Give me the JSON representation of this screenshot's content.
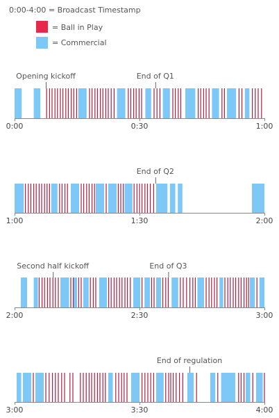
{
  "chart_data": {
    "type": "timeline",
    "legend": {
      "title": "0:00-4:00 = Broadcast Timestamp",
      "items": [
        {
          "label": "= Ball in Play",
          "color": "#e8284a"
        },
        {
          "label": "= Commercial",
          "color": "#7ec8f8"
        }
      ]
    },
    "colors": {
      "play": "#b01f3e",
      "commercial": "#7ec8f8",
      "axis": "#888888"
    },
    "panels": [
      {
        "start_min": 0,
        "ticks": [
          "0:00",
          "0:30",
          "1:00"
        ],
        "annotations": [
          {
            "label": "Opening kickoff",
            "at_min": 7.5
          },
          {
            "label": "End of Q1",
            "at_min": 33.8
          }
        ],
        "commercials": [
          [
            0.0,
            1.7
          ],
          [
            4.6,
            6.2
          ],
          [
            15.3,
            17.3
          ],
          [
            24.6,
            26.6
          ],
          [
            31.4,
            32.8
          ],
          [
            35.6,
            37.3
          ],
          [
            41.0,
            43.4
          ],
          [
            47.4,
            49.1
          ],
          [
            51.0,
            53.2
          ],
          [
            55.3,
            56.4
          ]
        ],
        "plays": [
          7.7,
          8.4,
          9.0,
          9.7,
          10.3,
          11.0,
          11.6,
          12.3,
          12.9,
          13.6,
          14.2,
          14.9,
          18.0,
          18.6,
          19.3,
          19.9,
          20.6,
          21.2,
          21.9,
          22.5,
          23.2,
          23.9,
          27.3,
          27.9,
          28.6,
          29.2,
          29.9,
          30.5,
          33.5,
          34.2,
          34.9,
          38.0,
          38.6,
          39.3,
          39.9,
          44.1,
          44.7,
          45.4,
          46.0,
          46.7,
          49.8,
          50.4,
          53.9,
          54.6,
          57.1,
          57.8,
          58.5,
          59.3
        ]
      },
      {
        "start_min": 60,
        "ticks": [
          "1:00",
          "1:30",
          "2:00"
        ],
        "annotations": [
          {
            "label": "End of Q2",
            "at_min": 93.8
          }
        ],
        "commercials": [
          [
            60.0,
            62.2
          ],
          [
            68.8,
            70.3
          ],
          [
            73.5,
            75.5
          ],
          [
            79.5,
            81.5
          ],
          [
            82.5,
            84.5
          ],
          [
            86.4,
            88.3
          ],
          [
            94.0,
            96.7
          ],
          [
            97.3,
            98.6
          ],
          [
            99.2,
            100.3
          ],
          [
            117.0,
            120.0
          ]
        ],
        "plays": [
          62.6,
          63.3,
          63.9,
          64.6,
          65.2,
          65.9,
          66.5,
          67.2,
          67.8,
          68.4,
          70.8,
          71.4,
          72.1,
          72.7,
          76.0,
          76.6,
          77.3,
          77.9,
          78.6,
          79.2,
          82.0,
          84.9,
          85.5,
          86.1,
          88.7,
          89.4,
          90.0,
          90.6,
          91.3,
          91.9,
          92.6,
          93.4
        ]
      },
      {
        "start_min": 120,
        "ticks": [
          "2:00",
          "2:30",
          "3:00"
        ],
        "annotations": [
          {
            "label": "Second half kickoff",
            "at_min": 129.2
          },
          {
            "label": "End of Q3",
            "at_min": 156.9
          }
        ],
        "commercials": [
          [
            121.5,
            123.0
          ],
          [
            124.6,
            125.6
          ],
          [
            131.0,
            133.1
          ],
          [
            134.2,
            135.0
          ],
          [
            136.5,
            137.8
          ],
          [
            140.3,
            142.2
          ],
          [
            148.5,
            150.2
          ],
          [
            151.2,
            152.5
          ],
          [
            154.0,
            155.2
          ],
          [
            157.7,
            159.3
          ],
          [
            163.9,
            165.5
          ],
          [
            169.2,
            170.1
          ],
          [
            176.5,
            177.7
          ],
          [
            178.8,
            180.0
          ]
        ],
        "plays": [
          125.9,
          126.6,
          127.2,
          127.9,
          128.5,
          129.2,
          129.8,
          130.5,
          133.5,
          134.1,
          135.4,
          136.0,
          138.2,
          138.9,
          139.5,
          142.6,
          143.2,
          143.9,
          144.5,
          145.2,
          145.8,
          146.5,
          147.1,
          147.8,
          150.6,
          152.9,
          153.5,
          155.6,
          156.3,
          156.9,
          159.8,
          160.5,
          161.3,
          162.1,
          162.8,
          163.4,
          166.0,
          166.7,
          167.3,
          168.0,
          168.6,
          170.5,
          171.2,
          171.8,
          172.5,
          173.1,
          173.8,
          174.4,
          175.1,
          175.7,
          176.2,
          178.2
        ]
      },
      {
        "start_min": 180,
        "ticks": [
          "3:00",
          "3:30",
          "4:00"
        ],
        "annotations": [
          {
            "label": "End of regulation",
            "at_min": 222.0
          }
        ],
        "commercials": [
          [
            180.5,
            181.6
          ],
          [
            182.0,
            184.0
          ],
          [
            185.0,
            187.0
          ],
          [
            202.5,
            203.6
          ],
          [
            208.0,
            210.0
          ],
          [
            214.0,
            215.8
          ],
          [
            221.5,
            223.0
          ],
          [
            227.0,
            228.2
          ],
          [
            229.6,
            233.0
          ],
          [
            235.5,
            236.6
          ],
          [
            238.0,
            239.6
          ]
        ],
        "plays": [
          184.5,
          187.5,
          188.3,
          189.1,
          189.8,
          190.5,
          191.3,
          192.0,
          193.3,
          194.0,
          195.8,
          196.5,
          197.2,
          197.9,
          198.5,
          199.2,
          199.9,
          200.5,
          201.2,
          201.8,
          204.3,
          205.0,
          205.7,
          206.3,
          207.0,
          210.6,
          211.3,
          212.0,
          212.7,
          213.4,
          216.3,
          217.0,
          217.5,
          218.1,
          218.8,
          219.6,
          220.4,
          223.7,
          228.8,
          233.8,
          234.4,
          235.1,
          237.2,
          240.0
        ]
      }
    ]
  }
}
